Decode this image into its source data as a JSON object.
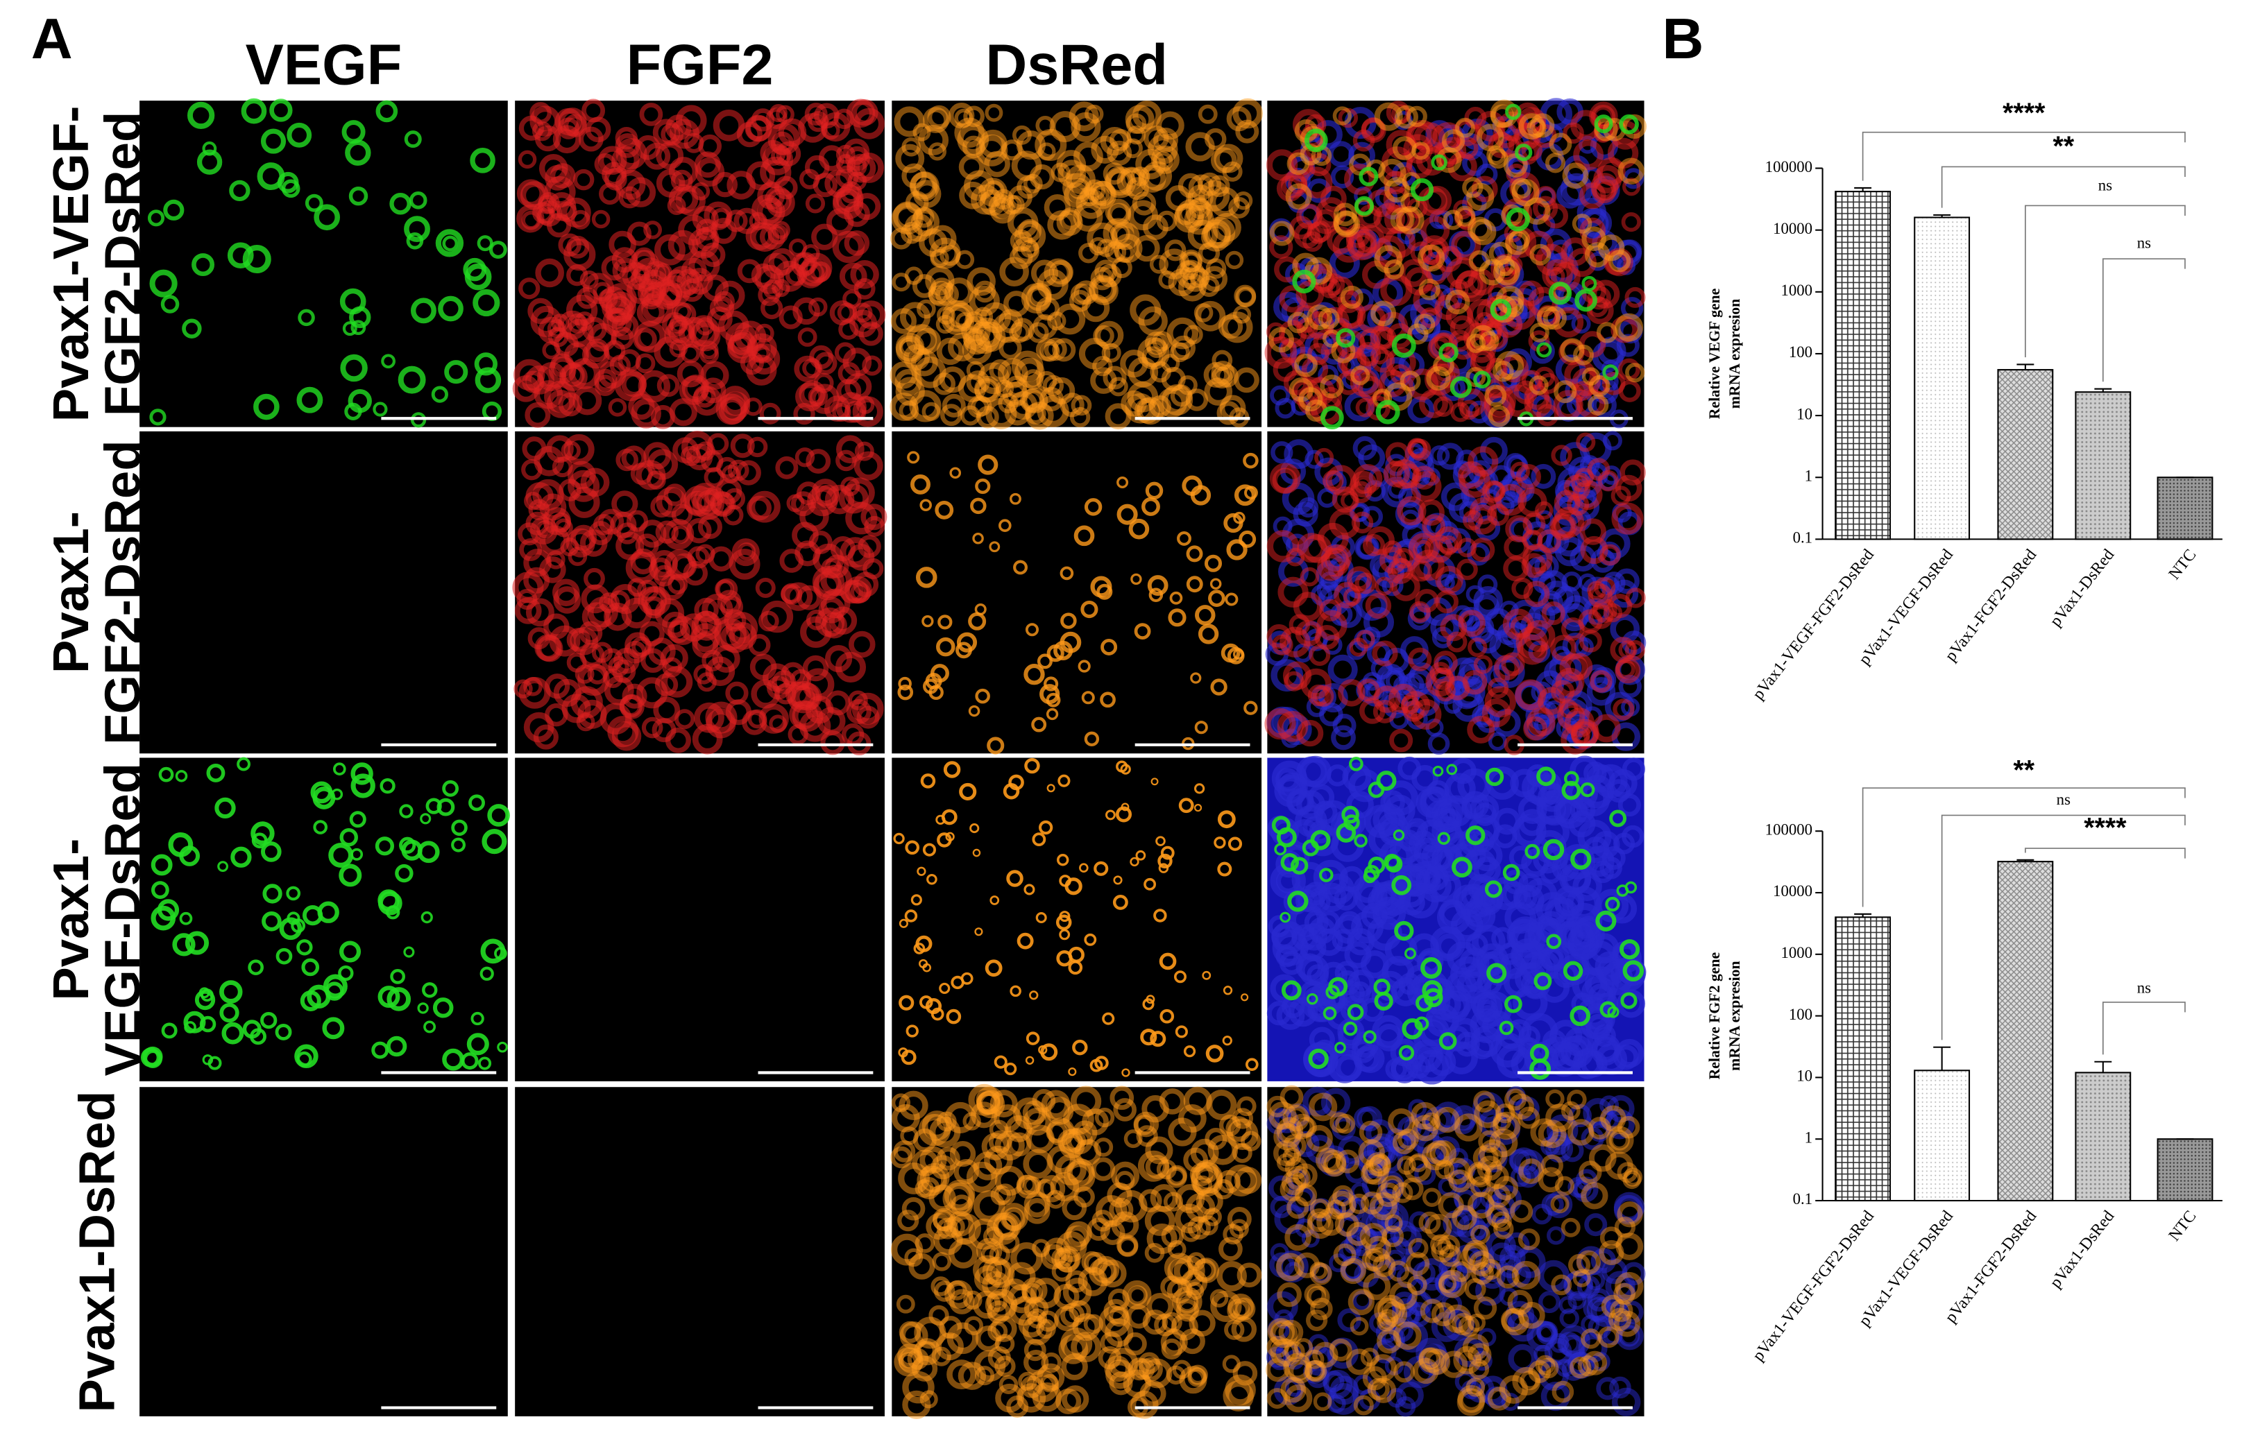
{
  "panel_a": {
    "label": "A",
    "columns": [
      "VEGF",
      "FGF2",
      "DsRed"
    ],
    "rows": [
      [
        "Pvax1-VEGF-",
        "FGF2-DsRed"
      ],
      [
        "Pvax1-",
        "FGF2-DsRed"
      ],
      [
        "Pvax1-",
        "VEGF-DsRed"
      ],
      [
        "Pvax1-DsRed"
      ]
    ]
  },
  "panel_b": {
    "label": "B"
  },
  "chart_data": [
    {
      "type": "bar",
      "ylabel": [
        "Relative VEGF gene",
        "mRNA expresion"
      ],
      "categories": [
        "pVax1-VEGF-FGF2-DsRed",
        "pVax1-VEGF-DsRed",
        "pVax1-FGF2-DsRed",
        "pVax1-DsRed",
        "NTC"
      ],
      "values": [
        42000,
        16000,
        55,
        24,
        1
      ],
      "errors": [
        6000,
        1500,
        12,
        3,
        0
      ],
      "log_scale": true,
      "ylim": [
        0.1,
        100000
      ],
      "yticks": [
        0.1,
        1,
        10,
        100,
        1000,
        10000,
        100000
      ],
      "annotations": [
        "****",
        "**",
        "ns",
        "ns"
      ]
    },
    {
      "type": "bar",
      "ylabel": [
        "Relative FGF2 gene",
        "mRNA expresion"
      ],
      "categories": [
        "pVax1-VEGF-FGF2-DsRed",
        "pVax1-VEGF-DsRed",
        "pVax1-FGF2-DsRed",
        "pVax1-DsRed",
        "NTC"
      ],
      "values": [
        4000,
        13,
        32000,
        12,
        1
      ],
      "errors": [
        500,
        18,
        2000,
        6,
        0
      ],
      "log_scale": true,
      "ylim": [
        0.1,
        100000
      ],
      "yticks": [
        0.1,
        1,
        10,
        100,
        1000,
        10000,
        100000
      ],
      "annotations": [
        "**",
        "ns",
        "****",
        "ns"
      ]
    }
  ]
}
